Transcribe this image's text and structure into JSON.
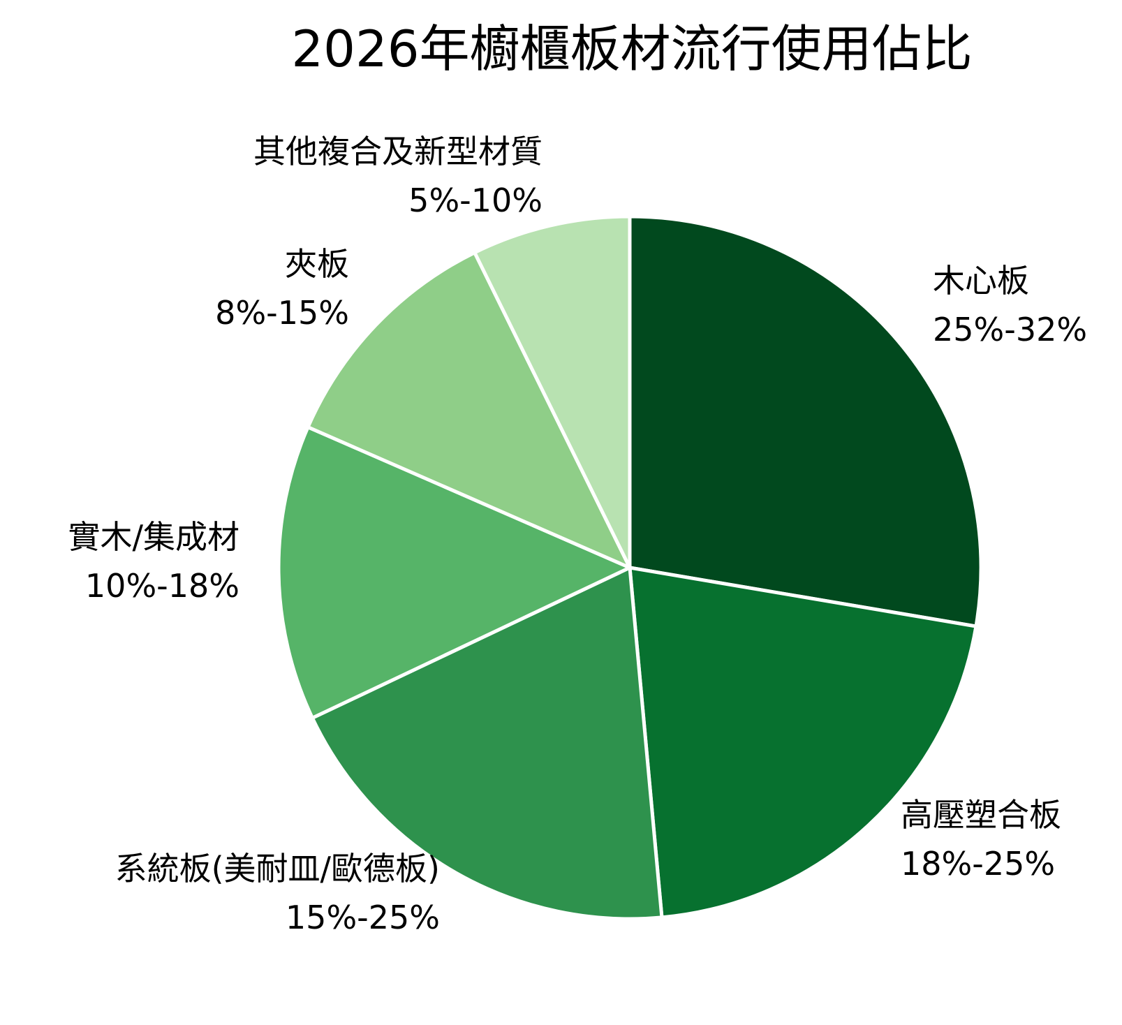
{
  "chart_data": {
    "type": "pie",
    "title": "2026年櫥櫃板材流行使用佔比",
    "slices": [
      {
        "name": "木心板",
        "range_text": "25%-32%",
        "value": 28.5,
        "color": "#01491e"
      },
      {
        "name": "高壓塑合板",
        "range_text": "18%-25%",
        "value": 21.5,
        "color": "#07712f"
      },
      {
        "name": "系統板(美耐皿/歐德板)",
        "range_text": "15%-25%",
        "value": 20.0,
        "color": "#2e924d"
      },
      {
        "name": "實木/集成材",
        "range_text": "10%-18%",
        "value": 14.0,
        "color": "#56b468"
      },
      {
        "name": "夾板",
        "range_text": "8%-15%",
        "value": 11.5,
        "color": "#8fce88"
      },
      {
        "name": "其他複合及新型材質",
        "range_text": "5%-10%",
        "value": 7.5,
        "color": "#b8e2b1"
      }
    ],
    "start_angle_deg": 0,
    "direction": "clockwise",
    "legend": "none",
    "label_placement": "outside"
  }
}
